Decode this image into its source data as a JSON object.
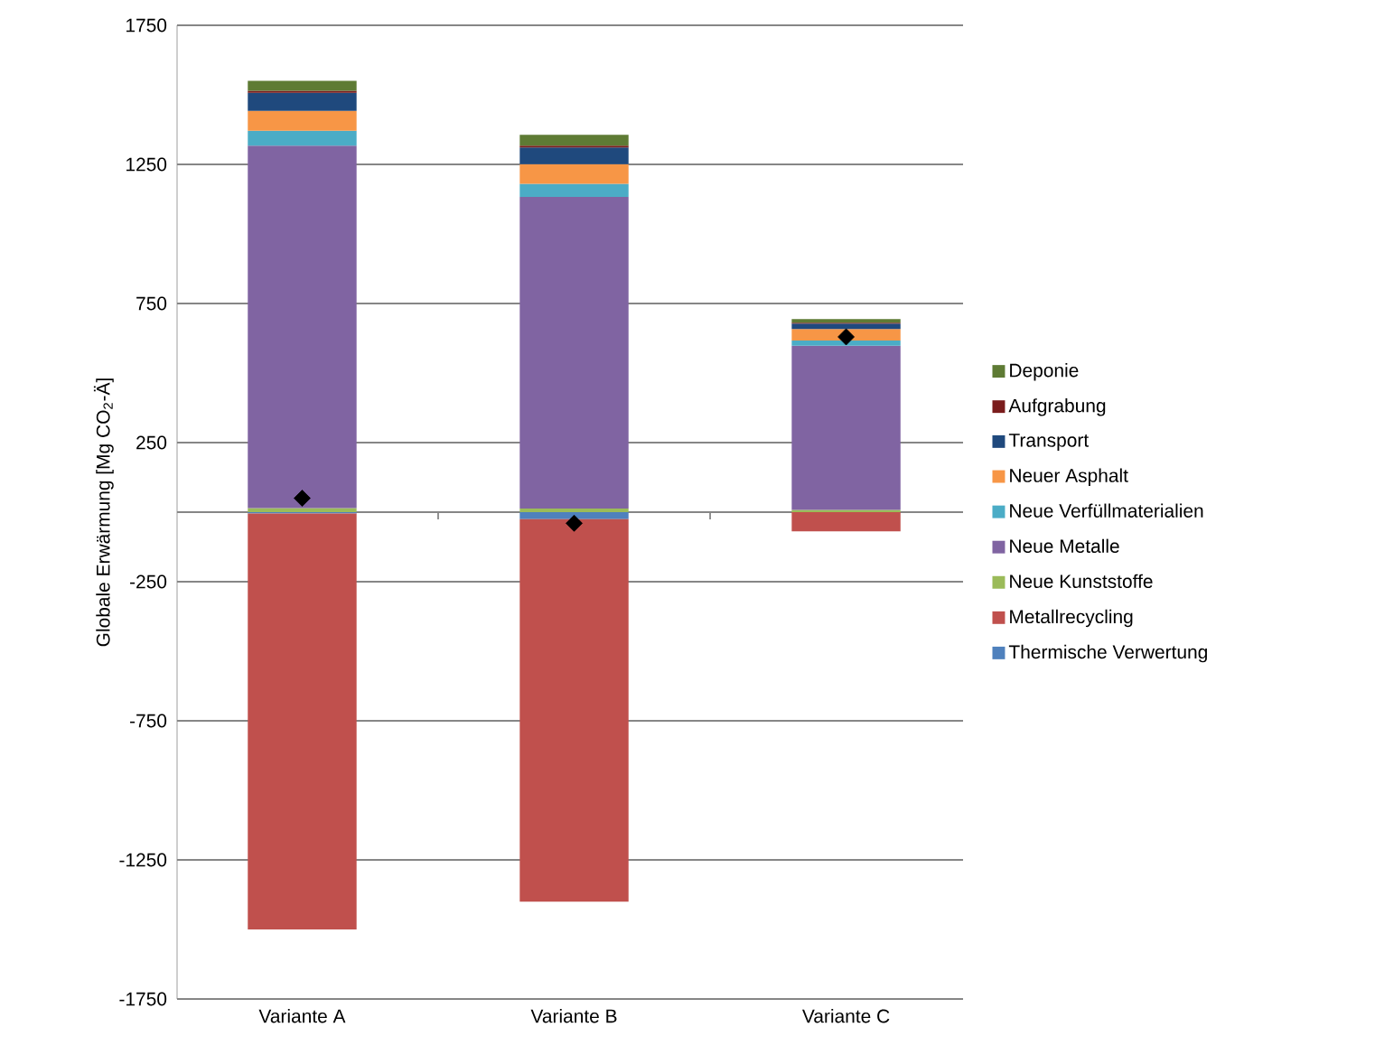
{
  "chart_data": {
    "type": "bar",
    "stacked": true,
    "ylabel": "Globale Erwärmung [Mg CO$_{2}$-Ä]",
    "categories": [
      "Variante A",
      "Variante B",
      "Variante C"
    ],
    "ylim": [
      -1750,
      1750
    ],
    "yticks": [
      -1750,
      -1250,
      -750,
      -250,
      250,
      750,
      1250,
      1750
    ],
    "grid": "y",
    "legend": "right",
    "series": [
      {
        "name": "Thermische Verwertung",
        "color": "#4f81bd",
        "values": [
          -5,
          -25,
          0
        ]
      },
      {
        "name": "Metallrecycling",
        "color": "#c0504d",
        "values": [
          -1495,
          -1375,
          -69
        ]
      },
      {
        "name": "Neue Kunststoffe",
        "color": "#9bbb59",
        "values": [
          15,
          13,
          8
        ]
      },
      {
        "name": "Neue Metalle",
        "color": "#8064a2",
        "values": [
          1302,
          1120,
          590
        ]
      },
      {
        "name": "Neue Verfüllmaterialien",
        "color": "#4bacc6",
        "values": [
          54,
          47,
          19
        ]
      },
      {
        "name": "Neuer Asphalt",
        "color": "#f79646",
        "values": [
          71,
          71,
          41
        ]
      },
      {
        "name": "Transport",
        "color": "#1f497d",
        "values": [
          65,
          60,
          20
        ]
      },
      {
        "name": "Aufgrabung",
        "color": "#7a1c1c",
        "values": [
          8,
          6,
          3
        ]
      },
      {
        "name": "Deponie",
        "color": "#5e7b34",
        "values": [
          35,
          39,
          13
        ]
      },
      {
        "type": "scatter",
        "marker": "diamond",
        "color": "#000000",
        "x": [
          "Variante A",
          "Variante B",
          "Variante C"
        ],
        "values": [
          50,
          -40,
          630
        ]
      }
    ]
  }
}
